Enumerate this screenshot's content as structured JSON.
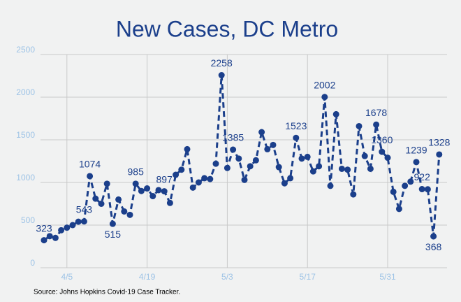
{
  "chart_data": {
    "type": "line",
    "title": "New Cases, DC Metro",
    "source": "Source: Johns Hopkins Covid-19 Case Tracker.",
    "categories": [
      null,
      null,
      null,
      null,
      "4/5",
      null,
      null,
      null,
      null,
      null,
      null,
      null,
      null,
      null,
      null,
      null,
      null,
      null,
      "4/19",
      null,
      null,
      null,
      null,
      null,
      null,
      null,
      null,
      null,
      null,
      null,
      null,
      null,
      "5/3",
      null,
      null,
      null,
      null,
      null,
      null,
      null,
      null,
      null,
      null,
      null,
      null,
      null,
      "5/17",
      null,
      null,
      null,
      null,
      null,
      null,
      null,
      null,
      null,
      null,
      null,
      null,
      null,
      "5/31",
      null,
      null,
      null,
      null,
      null,
      null,
      null,
      null,
      null
    ],
    "series": [
      {
        "name": "New Cases",
        "color": "#1b3f8b",
        "values": [
          323,
          370,
          350,
          440,
          470,
          500,
          540,
          543,
          1074,
          810,
          750,
          985,
          515,
          800,
          660,
          620,
          985,
          900,
          930,
          840,
          910,
          897,
          760,
          1090,
          1150,
          1390,
          940,
          1000,
          1050,
          1040,
          1220,
          2258,
          1170,
          1385,
          1280,
          1030,
          1190,
          1260,
          1590,
          1390,
          1440,
          1180,
          990,
          1050,
          1523,
          1280,
          1300,
          1130,
          1190,
          2002,
          960,
          1800,
          1160,
          1150,
          860,
          1660,
          1310,
          1160,
          1678,
          1360,
          1290,
          890,
          690,
          960,
          1010,
          1239,
          922,
          920,
          368,
          1328
        ],
        "value_labels": [
          "323",
          null,
          null,
          null,
          null,
          null,
          null,
          "543",
          "1074",
          null,
          null,
          null,
          "515",
          null,
          null,
          null,
          "985",
          null,
          null,
          null,
          null,
          "897",
          null,
          null,
          null,
          null,
          null,
          null,
          null,
          null,
          null,
          "2258",
          null,
          "1385",
          null,
          null,
          null,
          null,
          null,
          null,
          null,
          null,
          null,
          null,
          "1523",
          null,
          null,
          null,
          null,
          "2002",
          null,
          null,
          null,
          null,
          null,
          null,
          null,
          null,
          "1678",
          "1360",
          null,
          null,
          null,
          null,
          null,
          "1239",
          "922",
          null,
          "368",
          "1328"
        ]
      }
    ],
    "ylim": [
      0,
      2500
    ],
    "yticks": [
      0,
      500,
      1000,
      1500,
      2000,
      2500
    ],
    "grid": true
  }
}
